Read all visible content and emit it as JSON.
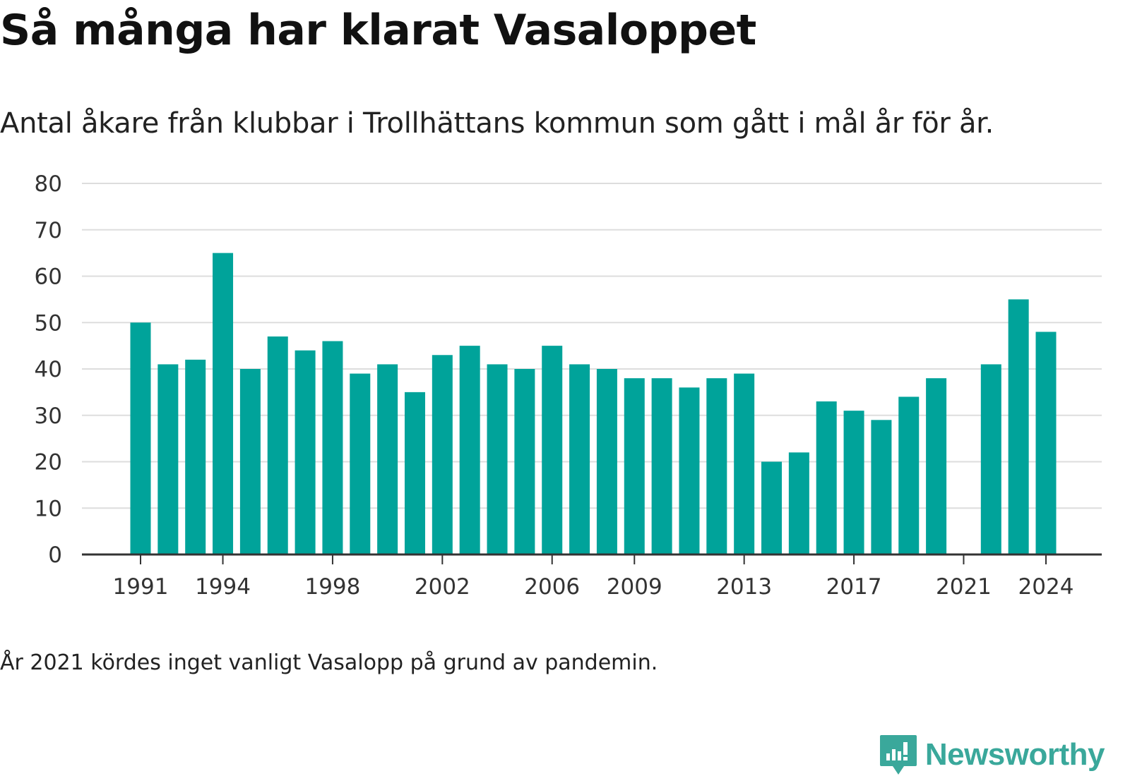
{
  "title": "Så många har klarat Vasaloppet",
  "subtitle": "Antal åkare från klubbar i Trollhättans kommun som gått i mål år för år.",
  "footnote": "År 2021 kördes inget vanligt Vasalopp på grund av pandemin.",
  "logo": {
    "text": "Newsworthy",
    "icon": "newsworthy-chart-bubble-icon",
    "color": "#3aa89b"
  },
  "chart_data": {
    "type": "bar",
    "categories": [
      1991,
      1992,
      1993,
      1994,
      1995,
      1996,
      1997,
      1998,
      1999,
      2000,
      2001,
      2002,
      2003,
      2004,
      2005,
      2006,
      2007,
      2008,
      2009,
      2010,
      2011,
      2012,
      2013,
      2014,
      2015,
      2016,
      2017,
      2018,
      2019,
      2020,
      2021,
      2022,
      2023,
      2024
    ],
    "values": [
      50,
      41,
      42,
      65,
      40,
      47,
      44,
      46,
      39,
      41,
      35,
      43,
      45,
      41,
      40,
      45,
      41,
      40,
      38,
      38,
      36,
      38,
      39,
      20,
      22,
      33,
      31,
      29,
      34,
      38,
      null,
      41,
      55,
      48
    ],
    "x_tick_labels": [
      "1991",
      "1994",
      "1998",
      "2002",
      "2006",
      "2009",
      "2013",
      "2017",
      "2021",
      "2024"
    ],
    "y_ticks": [
      0,
      10,
      20,
      30,
      40,
      50,
      60,
      70,
      80
    ],
    "ylim": [
      0,
      80
    ],
    "xlabel": "",
    "ylabel": "",
    "grid": true,
    "bar_color": "#00a39a",
    "grid_color": "#dddddd",
    "axis_color": "#333333"
  }
}
